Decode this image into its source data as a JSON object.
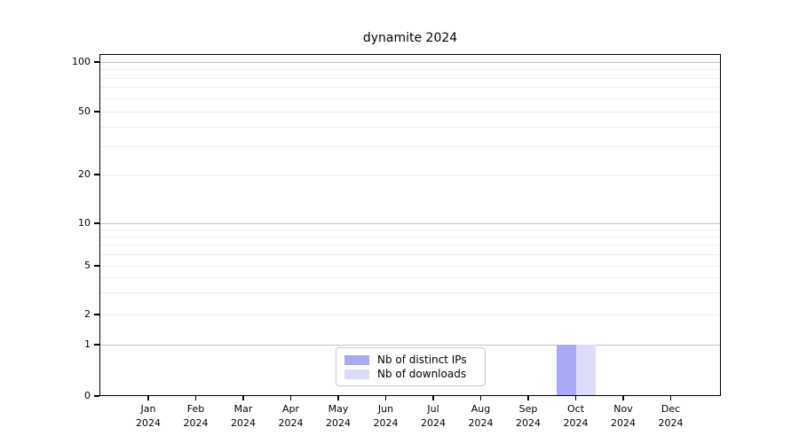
{
  "chart_data": {
    "type": "bar",
    "title": "dynamite 2024",
    "categories": [
      "Jan",
      "Feb",
      "Mar",
      "Apr",
      "May",
      "Jun",
      "Jul",
      "Aug",
      "Sep",
      "Oct",
      "Nov",
      "Dec"
    ],
    "x_tick_year": "2024",
    "series": [
      {
        "name": "Nb of distinct IPs",
        "color": "#a9a9f5",
        "values": [
          0,
          0,
          0,
          0,
          0,
          0,
          0,
          0,
          0,
          1,
          0,
          0
        ]
      },
      {
        "name": "Nb of downloads",
        "color": "#dcdcf8",
        "values": [
          0,
          0,
          0,
          0,
          0,
          0,
          0,
          0,
          0,
          1,
          0,
          0
        ]
      }
    ],
    "y_axis": {
      "scale": "symlog",
      "tick_labels": [
        0,
        1,
        2,
        5,
        10,
        20,
        50,
        100
      ],
      "major_gridlines": [
        1,
        10,
        100
      ],
      "minor_gridlines": [
        2,
        3,
        4,
        5,
        6,
        7,
        8,
        9,
        20,
        30,
        40,
        50,
        60,
        70,
        80,
        90
      ],
      "range": [
        0,
        110
      ]
    },
    "legend": {
      "position": "lower-center"
    },
    "grid": true
  },
  "colors": {
    "background": "#ffffff",
    "axis": "#000000",
    "text": "#000000",
    "grid_major": "#c4c4c4",
    "grid_minor": "#ededed",
    "legend_border": "#c9c9c9"
  }
}
